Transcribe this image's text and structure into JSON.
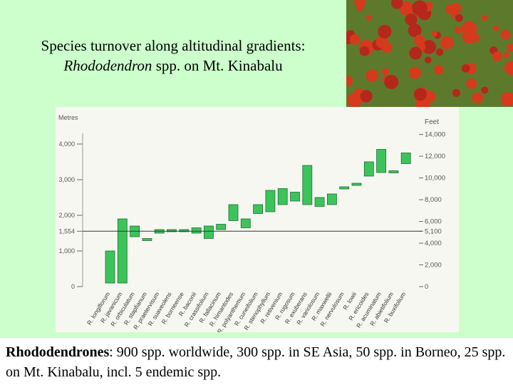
{
  "title": {
    "line1": "Species turnover along altitudinal gradients:",
    "genus": "Rhododendron",
    "line2_rest": " spp. on Mt. Kinabalu"
  },
  "caption": {
    "bold": "Rhododendrones",
    "rest": ": 900 spp. worldwide, 300 spp. in SE Asia, 50 spp. in Borneo, 25 spp. on Mt. Kinabalu, incl. 5 endemic spp."
  },
  "colors": {
    "background": "#ccffcc",
    "bar_fill": "#3cc45a",
    "bar_stroke": "#1e6e33",
    "photo_foliage": "#5d7a2c",
    "photo_flower": "#d43a1c"
  },
  "chart_data": {
    "type": "bar",
    "subtype": "floating range bars",
    "left_axis_title": "Metres",
    "right_axis_title": "Feet",
    "ylim": [
      0,
      4300
    ],
    "left_ticks": [
      {
        "value": 0,
        "label": "0"
      },
      {
        "value": 1000,
        "label": "1,000"
      },
      {
        "value": 1554,
        "label": "1,554"
      },
      {
        "value": 2000,
        "label": "2,000"
      },
      {
        "value": 3000,
        "label": "3,000"
      },
      {
        "value": 4000,
        "label": "4,000"
      }
    ],
    "right_ticks": [
      {
        "value": 0,
        "label": "0"
      },
      {
        "value": 2000,
        "label": "2,000"
      },
      {
        "value": 4000,
        "label": "4,000"
      },
      {
        "value": 5100,
        "label": "5,100"
      },
      {
        "value": 6000,
        "label": "6,000"
      },
      {
        "value": 8000,
        "label": "8,000"
      },
      {
        "value": 10000,
        "label": "10,000"
      },
      {
        "value": 12000,
        "label": "12,000"
      },
      {
        "value": 14000,
        "label": "14,000"
      }
    ],
    "reference_line": {
      "value": 1554
    },
    "categories": [
      "R. longiflorum",
      "R. javanicum",
      "R. orbiculatum",
      "R. stapfianum",
      "R. praetervisum",
      "R. suaveolens",
      "R. borneense",
      "R. baconii",
      "R. crassifolium",
      "R. fallacinum",
      "R. himantodes",
      "R. polyanthemum",
      "R. cuneifolium",
      "R. stenophyllum",
      "R. retivenium",
      "R. rugosum",
      "R. exuberans",
      "R. variolosum",
      "R. maxwellii",
      "R. nervulosum",
      "R. lowii",
      "R. ericoides",
      "R. acuminatum",
      "R. abietifolium",
      "R. buxifolium"
    ],
    "ranges": [
      [
        100,
        1000
      ],
      [
        100,
        1900
      ],
      [
        1400,
        1700
      ],
      [
        1300,
        1350
      ],
      [
        1500,
        1600
      ],
      [
        1550,
        1600
      ],
      [
        1600,
        1550
      ],
      [
        1650,
        1500
      ],
      [
        1700,
        1350
      ],
      [
        1750,
        1600
      ],
      [
        1850,
        2300
      ],
      [
        1900,
        1650
      ],
      [
        2050,
        2300
      ],
      [
        2100,
        2700
      ],
      [
        2300,
        2750
      ],
      [
        2400,
        2650
      ],
      [
        2300,
        3400
      ],
      [
        2500,
        2250
      ],
      [
        2600,
        2300
      ],
      [
        2800,
        2750
      ],
      [
        2850,
        2900
      ],
      [
        3100,
        3500
      ],
      [
        3200,
        3850
      ],
      [
        3200,
        3250
      ],
      [
        3450,
        3750
      ]
    ]
  }
}
